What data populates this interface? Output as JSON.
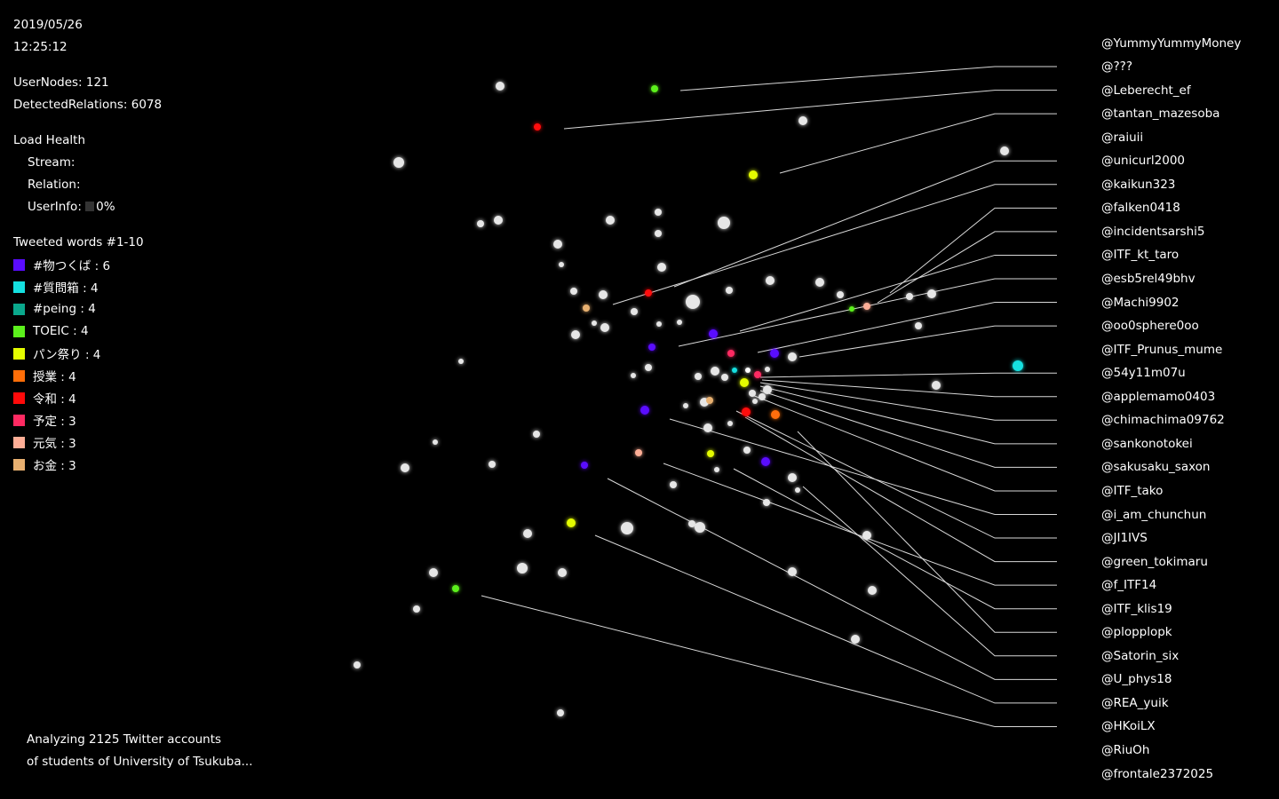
{
  "datetime": {
    "date": "2019/05/26",
    "time": "12:25:12"
  },
  "stats": {
    "user_nodes": "UserNodes: 121",
    "detected_relations": "DetectedRelations: 6078"
  },
  "load_health": {
    "title": "Load Health",
    "stream_label": "Stream:",
    "relation_label": "Relation:",
    "userinfo_label": "UserInfo:",
    "userinfo_value": "0%"
  },
  "legend": {
    "title": "Tweeted words #1-10",
    "items": [
      {
        "label": "#物つくば : 6",
        "color": "#5a0cff"
      },
      {
        "label": "#質問箱 : 4",
        "color": "#14e0e0"
      },
      {
        "label": "#peing : 4",
        "color": "#0aa88c"
      },
      {
        "label": "TOEIC : 4",
        "color": "#5cf01c"
      },
      {
        "label": "パン祭り : 4",
        "color": "#e4fc00"
      },
      {
        "label": "授業 : 4",
        "color": "#ff6e08"
      },
      {
        "label": "令和 : 4",
        "color": "#ff0a0a"
      },
      {
        "label": "予定 : 3",
        "color": "#ff2a62"
      },
      {
        "label": "元気 : 3",
        "color": "#ffae96"
      },
      {
        "label": "お金 : 3",
        "color": "#e8b070"
      }
    ]
  },
  "footer": {
    "line1": "Analyzing 2125 Twitter accounts",
    "line2": "of students of University of Tsukuba..."
  },
  "handles": [
    "@YummyYummyMoney",
    "@???",
    "@Leberecht_ef",
    "@tantan_mazesoba",
    "@raiuii",
    "@unicurl2000",
    "@kaikun323",
    "@falken0418",
    "@incidentsarshi5",
    "@ITF_kt_taro",
    "@esb5rel49bhv",
    "@Machi9902",
    "@oo0sphere0oo",
    "@ITF_Prunus_mume",
    "@54y11m07u",
    "@applemamo0403",
    "@chimachima09762",
    "@sankonotokei",
    "@sakusaku_saxon",
    "@ITF_tako",
    "@i_am_chunchun",
    "@JI1IVS",
    "@green_tokimaru",
    "@f_ITF14",
    "@ITF_klis19",
    "@plopplopk",
    "@Satorin_six",
    "@U_phys18",
    "@REA_yuik",
    "@HKoiLX",
    "@RiuOh",
    "@frontale2372025"
  ],
  "node_colors": {
    "default": "#e6e6e6",
    "purple": "#5a0cff",
    "cyan": "#14e0e0",
    "green": "#5cf01c",
    "yellow": "#e4fc00",
    "orange": "#ff6e08",
    "red": "#ff0a0a",
    "pink": "#ff2a62",
    "salmon": "#ffae96",
    "tan": "#e8b070",
    "white": "#ffffff"
  }
}
